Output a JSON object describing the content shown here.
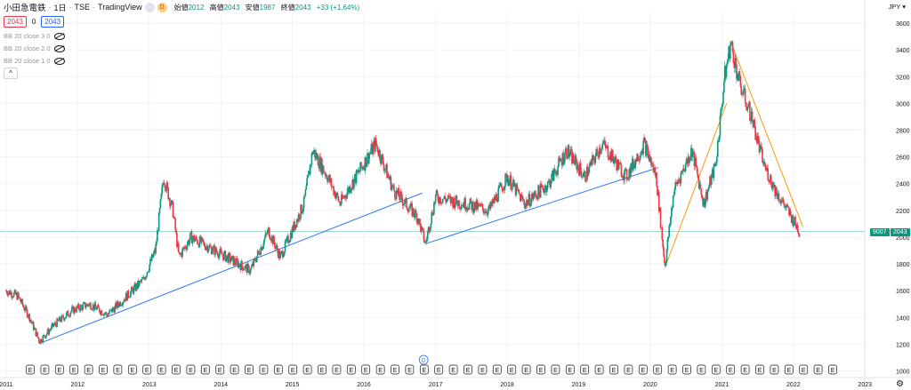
{
  "header": {
    "symbol": "小田急電鉄",
    "interval": "1日",
    "exchange": "TSE",
    "source": "TradingView",
    "status_icon_1": "",
    "status_icon_2": "D",
    "open_label": "始値",
    "open_value": "2012",
    "high_label": "高値",
    "high_value": "2043",
    "low_label": "安値",
    "low_value": "1987",
    "close_label": "終値",
    "close_value": "2043",
    "change": "+33 (+1.64%)"
  },
  "trade": {
    "sell": "2043",
    "spread": "0",
    "buy": "2043"
  },
  "indicators": [
    {
      "label": "BB 20 close 3 0"
    },
    {
      "label": "BB 20 close 2 0"
    },
    {
      "label": "BB 20 close 1 0"
    }
  ],
  "collapse_label": "^",
  "currency": "JPY",
  "settings_icon": "gear-icon",
  "last_price_tag": {
    "left": "9007",
    "right": "2043"
  },
  "colors": {
    "up": "#089981",
    "down": "#f23645",
    "trend_blue": "#3179f5",
    "trend_orange": "#ff9800",
    "grid": "#f0f3fa",
    "axis_text": "#131722"
  },
  "chart_data": {
    "type": "candlestick",
    "title": "小田急電鉄 · 1日 · TSE",
    "x_range": [
      "2010-12-01",
      "2022-12-31"
    ],
    "ylim": [
      950,
      3680
    ],
    "y_ticks": [
      1000,
      1200,
      1400,
      1600,
      1800,
      2000,
      2200,
      2400,
      2600,
      2800,
      3000,
      3200,
      3400,
      3600
    ],
    "x_ticks": [
      "2011",
      "2012",
      "2013",
      "2014",
      "2015",
      "2016",
      "2017",
      "2018",
      "2019",
      "2020",
      "2021",
      "2022",
      "2023"
    ],
    "grid": true,
    "last_price": 2043,
    "price_path": [
      {
        "date": "2011-01-01",
        "close": 1600
      },
      {
        "date": "2011-03-01",
        "close": 1560
      },
      {
        "date": "2011-05-01",
        "close": 1400
      },
      {
        "date": "2011-06-20",
        "close": 1220
      },
      {
        "date": "2011-09-01",
        "close": 1340
      },
      {
        "date": "2011-12-01",
        "close": 1450
      },
      {
        "date": "2012-03-01",
        "close": 1500
      },
      {
        "date": "2012-06-01",
        "close": 1420
      },
      {
        "date": "2012-09-01",
        "close": 1550
      },
      {
        "date": "2012-12-01",
        "close": 1680
      },
      {
        "date": "2013-02-01",
        "close": 1900
      },
      {
        "date": "2013-03-15",
        "close": 2450
      },
      {
        "date": "2013-05-01",
        "close": 2200
      },
      {
        "date": "2013-06-01",
        "close": 1850
      },
      {
        "date": "2013-08-01",
        "close": 2000
      },
      {
        "date": "2013-12-01",
        "close": 1900
      },
      {
        "date": "2014-06-01",
        "close": 1750
      },
      {
        "date": "2014-09-01",
        "close": 2050
      },
      {
        "date": "2014-11-01",
        "close": 1850
      },
      {
        "date": "2015-03-01",
        "close": 2250
      },
      {
        "date": "2015-04-15",
        "close": 2650
      },
      {
        "date": "2015-07-01",
        "close": 2450
      },
      {
        "date": "2015-09-01",
        "close": 2250
      },
      {
        "date": "2016-01-01",
        "close": 2550
      },
      {
        "date": "2016-03-01",
        "close": 2700
      },
      {
        "date": "2016-06-01",
        "close": 2350
      },
      {
        "date": "2016-10-01",
        "close": 2150
      },
      {
        "date": "2016-11-10",
        "close": 1950
      },
      {
        "date": "2017-01-01",
        "close": 2300
      },
      {
        "date": "2017-06-01",
        "close": 2250
      },
      {
        "date": "2017-10-01",
        "close": 2200
      },
      {
        "date": "2018-01-01",
        "close": 2450
      },
      {
        "date": "2018-04-01",
        "close": 2250
      },
      {
        "date": "2018-08-01",
        "close": 2400
      },
      {
        "date": "2018-11-01",
        "close": 2650
      },
      {
        "date": "2019-02-01",
        "close": 2450
      },
      {
        "date": "2019-05-01",
        "close": 2700
      },
      {
        "date": "2019-09-01",
        "close": 2450
      },
      {
        "date": "2019-12-01",
        "close": 2700
      },
      {
        "date": "2020-02-01",
        "close": 2450
      },
      {
        "date": "2020-03-16",
        "close": 1780
      },
      {
        "date": "2020-05-01",
        "close": 2350
      },
      {
        "date": "2020-08-01",
        "close": 2650
      },
      {
        "date": "2020-10-01",
        "close": 2250
      },
      {
        "date": "2020-12-01",
        "close": 2550
      },
      {
        "date": "2021-01-15",
        "close": 3200
      },
      {
        "date": "2021-02-15",
        "close": 3450
      },
      {
        "date": "2021-04-01",
        "close": 3150
      },
      {
        "date": "2021-06-01",
        "close": 2900
      },
      {
        "date": "2021-08-01",
        "close": 2550
      },
      {
        "date": "2021-10-01",
        "close": 2350
      },
      {
        "date": "2021-12-01",
        "close": 2200
      },
      {
        "date": "2022-02-01",
        "close": 2043
      }
    ],
    "trendlines": [
      {
        "color": "blue",
        "from": {
          "date": "2011-06-20",
          "price": 1205
        },
        "to": {
          "date": "2016-10-25",
          "price": 2330
        }
      },
      {
        "color": "blue",
        "from": {
          "date": "2016-11-10",
          "price": 1950
        },
        "to": {
          "date": "2020-02-10",
          "price": 2520
        }
      },
      {
        "color": "orange",
        "from": {
          "date": "2020-03-16",
          "price": 1770
        },
        "to": {
          "date": "2021-01-25",
          "price": 3000
        }
      },
      {
        "color": "orange",
        "from": {
          "date": "2021-02-12",
          "price": 3470
        },
        "to": {
          "date": "2022-02-18",
          "price": 2080
        }
      }
    ],
    "event_markers": {
      "row_labels": [
        "E",
        "E",
        "E",
        "E",
        "E",
        "E",
        "E",
        "E",
        "E",
        "E",
        "E",
        "E",
        "E",
        "E",
        "E",
        "E",
        "E",
        "E",
        "E",
        "E",
        "E",
        "E",
        "E",
        "E",
        "E",
        "E",
        "E",
        "E",
        "E",
        "E",
        "E",
        "E",
        "E",
        "E",
        "E",
        "E",
        "E",
        "E",
        "E",
        "E",
        "E",
        "E",
        "E",
        "E",
        "E",
        "E",
        "E",
        "E",
        "E",
        "E",
        "E",
        "E",
        "E",
        "E",
        "E",
        "E"
      ],
      "extra_label": "D"
    }
  }
}
